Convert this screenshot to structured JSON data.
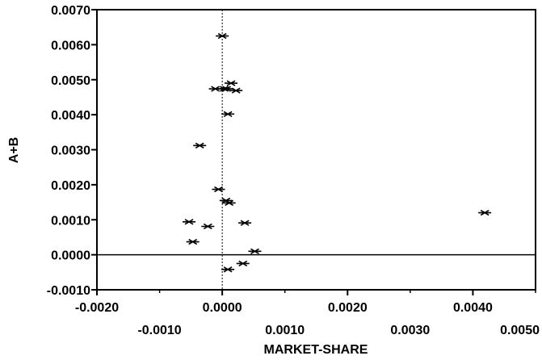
{
  "chart_data": {
    "type": "scatter",
    "title": "",
    "xlabel": "MARKET-SHARE",
    "ylabel": "A+B",
    "xlim": [
      -0.002,
      0.005
    ],
    "ylim": [
      -0.001,
      0.007
    ],
    "x_ticks_major": [
      "-0.0020",
      "0.0000",
      "0.0020",
      "0.0040"
    ],
    "x_ticks_minor": [
      "-0.0010",
      "0.0010",
      "0.0030",
      "0.0050"
    ],
    "y_ticks": [
      "-0.0010",
      "0.0000",
      "0.0010",
      "0.0020",
      "0.0030",
      "0.0040",
      "0.0050",
      "0.0060",
      "0.0070"
    ],
    "reference_lines": {
      "x": 0.0,
      "y": 0.0
    },
    "grid": false,
    "marker": "asterisk",
    "series": [
      {
        "points": [
          {
            "x": 0.0,
            "y": 0.00625
          },
          {
            "x": -0.00011,
            "y": 0.00474
          },
          {
            "x": 3e-05,
            "y": 0.00474
          },
          {
            "x": 7e-05,
            "y": 0.00474
          },
          {
            "x": 0.00014,
            "y": 0.0049
          },
          {
            "x": 0.00022,
            "y": 0.00469
          },
          {
            "x": 9e-05,
            "y": 0.00402
          },
          {
            "x": -0.00036,
            "y": 0.00312
          },
          {
            "x": -6e-05,
            "y": 0.00187
          },
          {
            "x": 6e-05,
            "y": 0.00155
          },
          {
            "x": 0.00011,
            "y": 0.00148
          },
          {
            "x": -0.00053,
            "y": 0.00094
          },
          {
            "x": -0.00023,
            "y": 0.00081
          },
          {
            "x": -0.00047,
            "y": 0.00037
          },
          {
            "x": 0.00036,
            "y": 0.00091
          },
          {
            "x": 0.00052,
            "y": 0.0001
          },
          {
            "x": 0.00033,
            "y": -0.00025
          },
          {
            "x": 9e-05,
            "y": -0.00042
          },
          {
            "x": 0.00419,
            "y": 0.0012
          }
        ]
      }
    ]
  }
}
